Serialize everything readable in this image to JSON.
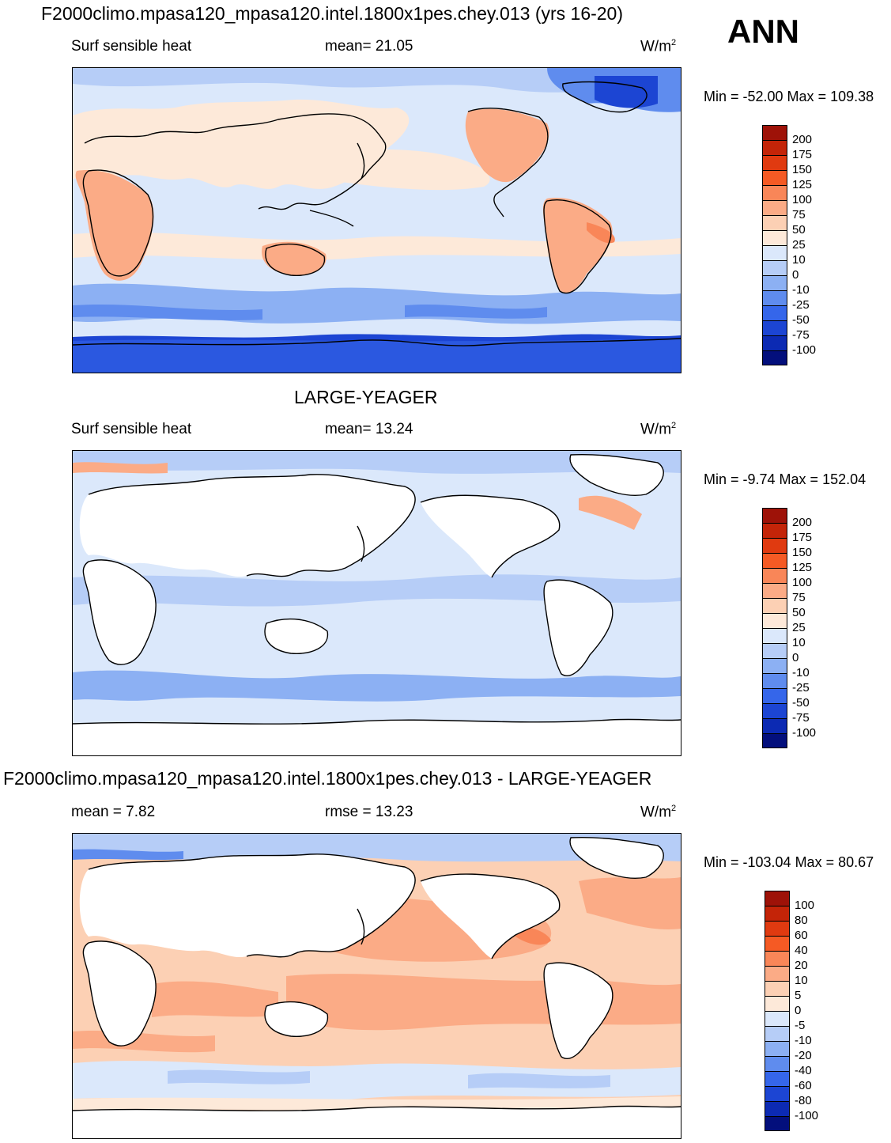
{
  "season": "ANN",
  "panels": [
    {
      "title": "F2000climo.mpasa120_mpasa120.intel.1800x1pes.chey.013 (yrs 16-20)",
      "left_label": "Surf sensible heat",
      "center_label": "mean=  21.05",
      "units": "W/m",
      "units_exp": "2",
      "minmax": "Min = -52.00 Max = 109.38",
      "colorbar": {
        "labels": [
          "200",
          "175",
          "150",
          "125",
          "100",
          "75",
          "50",
          "25",
          "10",
          "0",
          "-10",
          "-25",
          "-50",
          "-75",
          "-100"
        ],
        "colors": [
          "#9e1208",
          "#c42408",
          "#e03a10",
          "#f55a24",
          "#f98658",
          "#fbab86",
          "#fcd0b4",
          "#fde9d9",
          "#dbe8fb",
          "#b6cdf7",
          "#8cb0f3",
          "#5f8cee",
          "#3566ea",
          "#1c45d3",
          "#0c2ab3",
          "#030f7c"
        ]
      }
    },
    {
      "title": "LARGE-YEAGER",
      "left_label": "Surf sensible heat",
      "center_label": "mean=  13.24",
      "units": "W/m",
      "units_exp": "2",
      "minmax": "Min =  -9.74 Max = 152.04",
      "colorbar": {
        "labels": [
          "200",
          "175",
          "150",
          "125",
          "100",
          "75",
          "50",
          "25",
          "10",
          "0",
          "-10",
          "-25",
          "-50",
          "-75",
          "-100"
        ],
        "colors": [
          "#9e1208",
          "#c42408",
          "#e03a10",
          "#f55a24",
          "#f98658",
          "#fbab86",
          "#fcd0b4",
          "#fde9d9",
          "#dbe8fb",
          "#b6cdf7",
          "#8cb0f3",
          "#5f8cee",
          "#3566ea",
          "#1c45d3",
          "#0c2ab3",
          "#030f7c"
        ]
      }
    },
    {
      "title": "F2000climo.mpasa120_mpasa120.intel.1800x1pes.chey.013 - LARGE-YEAGER",
      "left_label": "mean =   7.82",
      "center_label": "rmse =   13.23",
      "units": "W/m",
      "units_exp": "2",
      "minmax": "Min = -103.04 Max =  80.67",
      "colorbar": {
        "labels": [
          "100",
          "80",
          "60",
          "40",
          "20",
          "10",
          "5",
          "0",
          "-5",
          "-10",
          "-20",
          "-40",
          "-60",
          "-80",
          "-100"
        ],
        "colors": [
          "#9e1208",
          "#c42408",
          "#e03a10",
          "#f55a24",
          "#f98658",
          "#fbab86",
          "#fcd0b4",
          "#fde9d9",
          "#dbe8fb",
          "#b6cdf7",
          "#8cb0f3",
          "#5f8cee",
          "#3566ea",
          "#1c45d3",
          "#0c2ab3",
          "#030f7c"
        ]
      }
    }
  ],
  "palette": {
    "ocean_pos_light": "#fde9d9",
    "ocean_zero": "#dbe8fb",
    "neg_light": "#b6cdf7",
    "neg_mid": "#5f8cee",
    "neg_strong": "#1c45d3",
    "pos_mid": "#fbab86",
    "pos_strong": "#f98658",
    "land_missing": "#ffffff",
    "coast": "#000000"
  }
}
